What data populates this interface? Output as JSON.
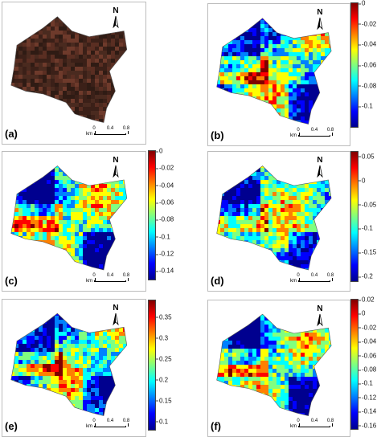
{
  "panels": [
    {
      "label": "(a)",
      "kind": "rgb",
      "north": "N",
      "scale_unit": "km",
      "scale_ticks": [
        "0",
        "0.4",
        "0.8"
      ],
      "colorbar": null
    },
    {
      "label": "(b)",
      "kind": "index",
      "north": "N",
      "scale_unit": "km",
      "scale_ticks": [
        "0",
        "0.4",
        "0.8"
      ],
      "colorbar": {
        "min": -0.12,
        "max": 0.0,
        "ticks": [
          "0",
          "-0.02",
          "-0.04",
          "-0.06",
          "-0.08",
          "-0.1"
        ],
        "tick_values": [
          0,
          -0.02,
          -0.04,
          -0.06,
          -0.08,
          -0.1
        ]
      }
    },
    {
      "label": "(c)",
      "kind": "index",
      "north": "N",
      "scale_unit": "km",
      "scale_ticks": [
        "0",
        "0.4",
        "0.8"
      ],
      "colorbar": {
        "min": -0.15,
        "max": 0.0,
        "ticks": [
          "0",
          "-0.02",
          "-0.04",
          "-0.06",
          "-0.08",
          "-0.1",
          "-0.12",
          "-0.14"
        ],
        "tick_values": [
          0,
          -0.02,
          -0.04,
          -0.06,
          -0.08,
          -0.1,
          -0.12,
          -0.14
        ]
      }
    },
    {
      "label": "(d)",
      "kind": "index",
      "north": "N",
      "scale_unit": "km",
      "scale_ticks": [
        "0",
        "0.4",
        "0.8"
      ],
      "colorbar": {
        "min": -0.21,
        "max": 0.06,
        "ticks": [
          "0.05",
          "0",
          "-0.05",
          "-0.1",
          "-0.15",
          "-0.2"
        ],
        "tick_values": [
          0.05,
          0,
          -0.05,
          -0.1,
          -0.15,
          -0.2
        ]
      }
    },
    {
      "label": "(e)",
      "kind": "index",
      "north": "N",
      "scale_unit": "km",
      "scale_ticks": [
        "0",
        "0.4",
        "0.8"
      ],
      "colorbar": {
        "min": 0.08,
        "max": 0.39,
        "ticks": [
          "0.35",
          "0.3",
          "0.25",
          "0.2",
          "0.15",
          "0.1"
        ],
        "tick_values": [
          0.35,
          0.3,
          0.25,
          0.2,
          0.15,
          0.1
        ]
      }
    },
    {
      "label": "(f)",
      "kind": "index",
      "north": "N",
      "scale_unit": "km",
      "scale_ticks": [
        "0",
        "0.4",
        "0.8"
      ],
      "colorbar": {
        "min": -0.165,
        "max": 0.02,
        "ticks": [
          "0.02",
          "0",
          "-0.02",
          "-0.04",
          "-0.06",
          "-0.08",
          "-0.1",
          "-0.12",
          "-0.14",
          "-0.16"
        ],
        "tick_values": [
          0.02,
          0,
          -0.02,
          -0.04,
          -0.06,
          -0.08,
          -0.1,
          -0.12,
          -0.14,
          -0.16
        ]
      }
    }
  ],
  "colormap": [
    "#00008f",
    "#0000ff",
    "#0080ff",
    "#00ffff",
    "#80ff80",
    "#ffff00",
    "#ff8000",
    "#ff0000",
    "#800000"
  ],
  "rgb_palette": [
    "#3b2018",
    "#5a2e22",
    "#6e3a2b",
    "#4a2a1f",
    "#2f1b14"
  ]
}
